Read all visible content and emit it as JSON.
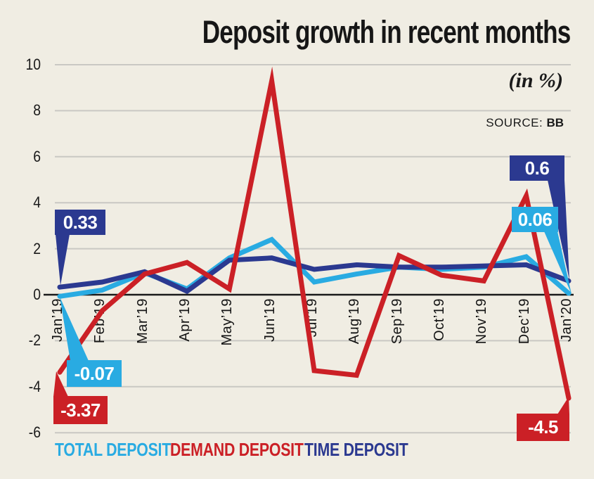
{
  "title": "Deposit growth in recent months",
  "unit_note": "(in %)",
  "source": {
    "label": "SOURCE:",
    "value": "BB"
  },
  "colors": {
    "total": "#29ABE2",
    "demand": "#CB2026",
    "time": "#2B3990",
    "background": "#F0EDE3",
    "grid": "#C9C8C3",
    "axis": "#1A1A1A"
  },
  "legend": {
    "items": [
      {
        "label": "TOTAL DEPOSIT",
        "key": "total"
      },
      {
        "label": "DEMAND DEPOSIT",
        "key": "demand"
      },
      {
        "label": "TIME DEPOSIT",
        "key": "time"
      }
    ]
  },
  "chart_data": {
    "type": "line",
    "categories": [
      "Jan’19",
      "Feb’19",
      "Mar’19",
      "Apr’19",
      "May’19",
      "Jun’19",
      "Jul’19",
      "Aug’19",
      "Sep’19",
      "Oct’19",
      "Nov’19",
      "Dec’19",
      "Jan’20"
    ],
    "series": [
      {
        "name": "TOTAL DEPOSIT",
        "key": "total",
        "values": [
          -0.07,
          0.2,
          0.95,
          0.25,
          1.6,
          2.4,
          0.55,
          0.9,
          1.2,
          1.1,
          1.2,
          1.65,
          0.06
        ]
      },
      {
        "name": "DEMAND DEPOSIT",
        "key": "demand",
        "values": [
          -3.37,
          -0.7,
          0.9,
          1.4,
          0.25,
          9.3,
          -3.3,
          -3.5,
          1.7,
          0.85,
          0.6,
          4.3,
          -4.5
        ]
      },
      {
        "name": "TIME DEPOSIT",
        "key": "time",
        "values": [
          0.33,
          0.55,
          1.0,
          0.15,
          1.5,
          1.6,
          1.1,
          1.3,
          1.2,
          1.2,
          1.25,
          1.3,
          0.6
        ]
      }
    ],
    "ylim": [
      -6,
      10
    ],
    "yticks": [
      10,
      8,
      6,
      4,
      2,
      0,
      -2,
      -4,
      -6
    ],
    "grid": "horizontal",
    "legend_position": "bottom",
    "x_label_rotation": "vertical",
    "callouts": [
      {
        "series": "time",
        "category": "Jan’19",
        "value": 0.33,
        "label": "0.33"
      },
      {
        "series": "total",
        "category": "Jan’19",
        "value": -0.07,
        "label": "-0.07"
      },
      {
        "series": "demand",
        "category": "Jan’19",
        "value": -3.37,
        "label": "-3.37"
      },
      {
        "series": "time",
        "category": "Jan’20",
        "value": 0.6,
        "label": "0.6"
      },
      {
        "series": "total",
        "category": "Jan’20",
        "value": 0.06,
        "label": "0.06"
      },
      {
        "series": "demand",
        "category": "Jan’20",
        "value": -4.5,
        "label": "-4.5"
      }
    ]
  }
}
